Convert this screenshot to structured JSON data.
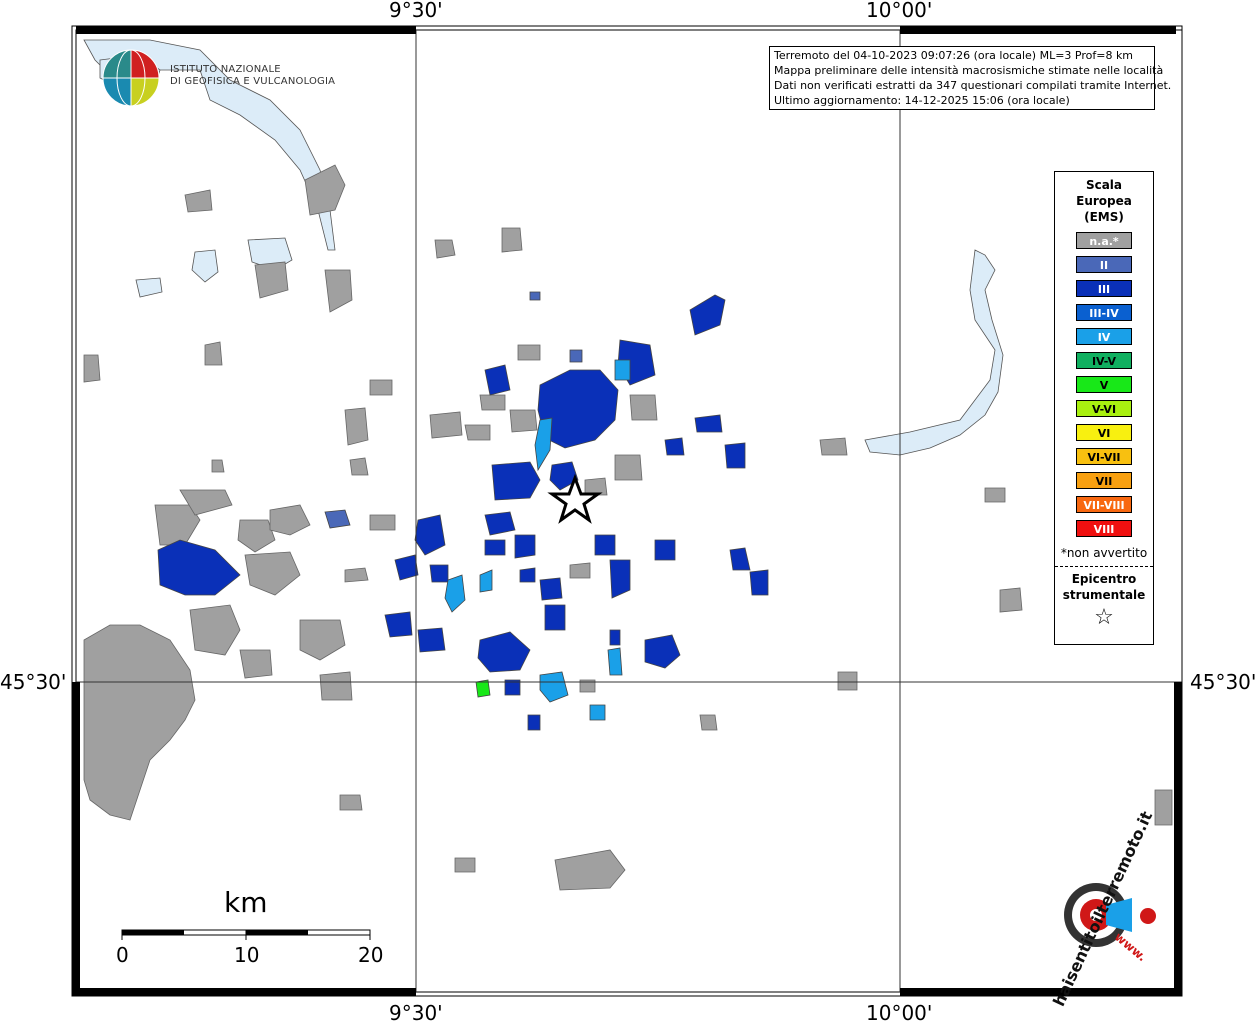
{
  "axis": {
    "lon_labels": [
      "9°30'",
      "10°00'"
    ],
    "lat_labels": [
      "45°30'",
      "45°30'"
    ]
  },
  "ingv": {
    "line1": "ISTITUTO NAZIONALE",
    "line2": "DI GEOFISICA E VULCANOLOGIA"
  },
  "info": {
    "line1": "Terremoto del 04-10-2023 09:07:26 (ora locale) ML=3 Prof=8 km",
    "line2": "Mappa preliminare delle intensità macrosismiche stimate nelle località",
    "line3": "Dati non verificati estratti da 347 questionari compilati tramite Internet.",
    "line4": "Ultimo aggiornamento: 14-12-2025 15:06 (ora locale)"
  },
  "legend": {
    "title1": "Scala",
    "title2": "Europea",
    "title3": "(EMS)",
    "items": [
      {
        "label": "n.a.*",
        "color": "#a0a0a0"
      },
      {
        "label": "II",
        "color": "#4a68b8"
      },
      {
        "label": "III",
        "color": "#0a30b8"
      },
      {
        "label": "III-IV",
        "color": "#0a60d0"
      },
      {
        "label": "IV",
        "color": "#1aa0e8"
      },
      {
        "label": "IV-V",
        "color": "#10b060"
      },
      {
        "label": "V",
        "color": "#18e818"
      },
      {
        "label": "V-VI",
        "color": "#a8f010"
      },
      {
        "label": "VI",
        "color": "#f8f010"
      },
      {
        "label": "VI-VII",
        "color": "#f8c010"
      },
      {
        "label": "VII",
        "color": "#f8a010"
      },
      {
        "label": "VII-VIII",
        "color": "#f86810"
      },
      {
        "label": "VIII",
        "color": "#f01010"
      }
    ],
    "note": "*non avvertito",
    "epicenter1": "Epicentro",
    "epicenter2": "strumentale",
    "star": "☆"
  },
  "scalebar": {
    "unit": "km",
    "ticks": [
      "0",
      "10",
      "20"
    ]
  },
  "haisentito": {
    "text": "haisentitoilterremoto.it",
    "www": "www."
  },
  "colors": {
    "na": "#a0a0a0",
    "II": "#4a68b8",
    "III": "#0a30b8",
    "IV": "#1aa0e8",
    "V": "#18e818",
    "water": "#dcecf8"
  }
}
